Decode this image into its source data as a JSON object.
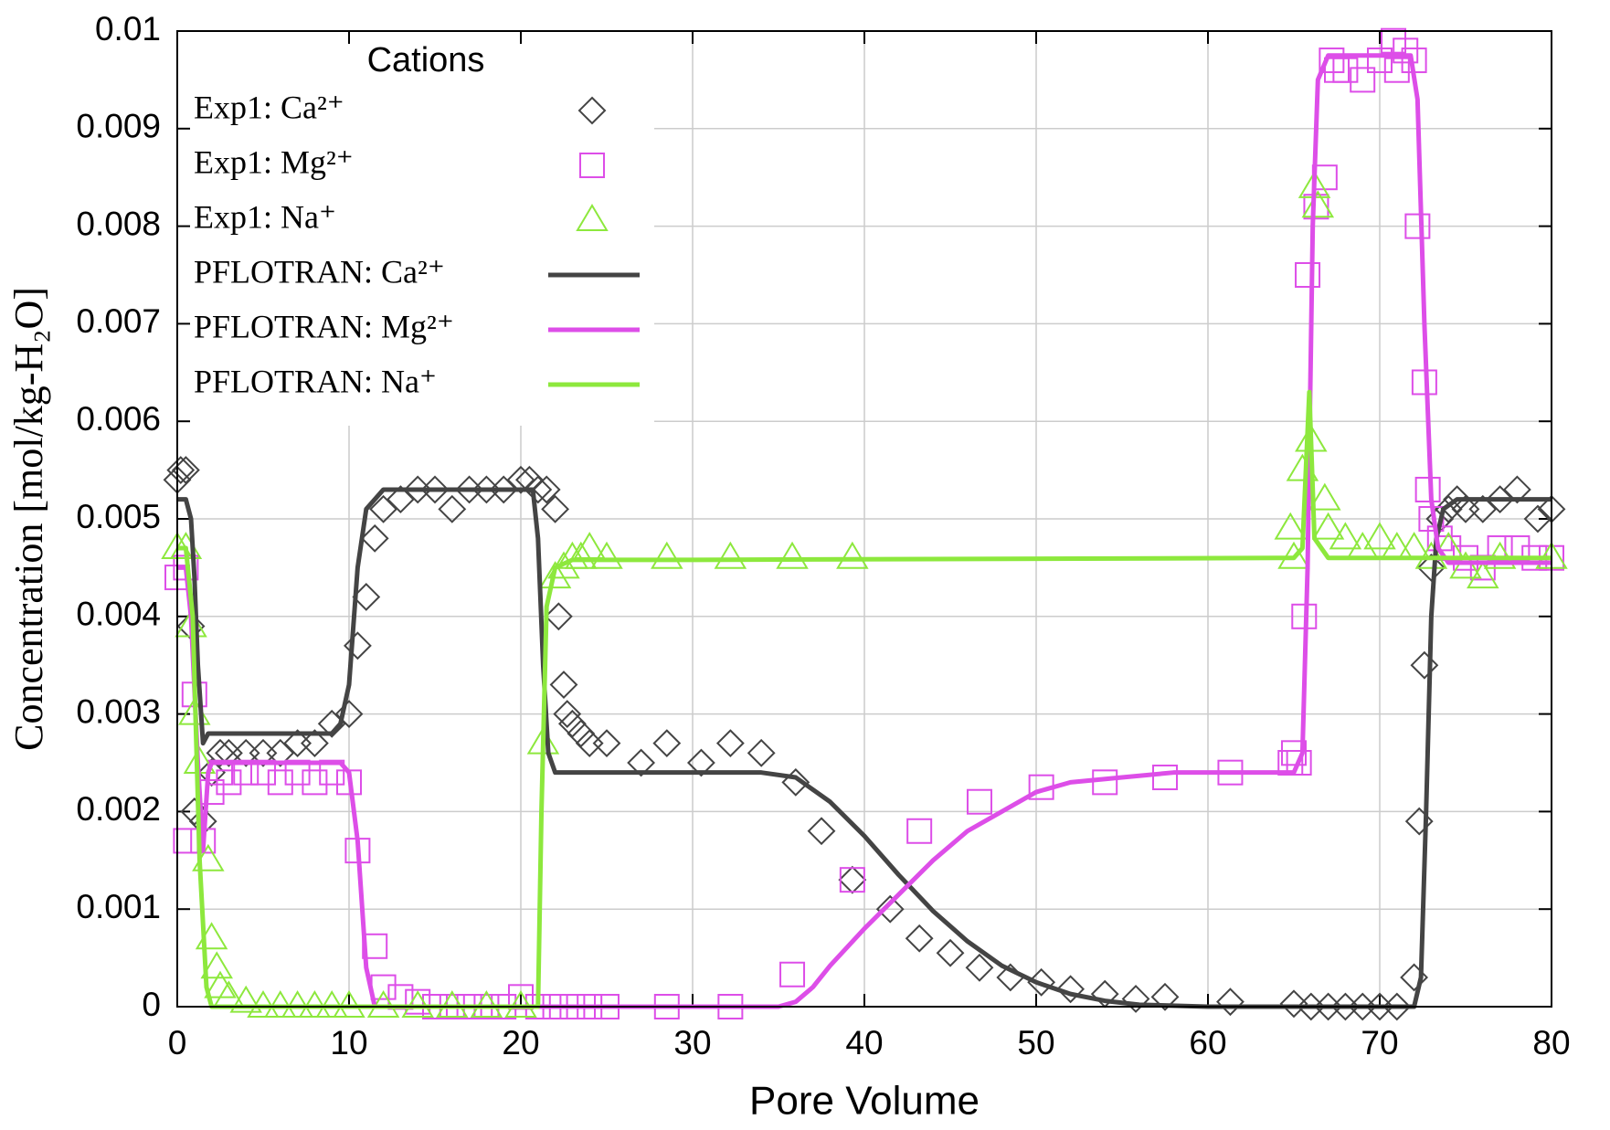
{
  "chart_data": {
    "type": "scatter-line",
    "xlabel": "Pore Volume",
    "ylabel": "Concentration [mol/kg-H₂O]",
    "legend_title": "Cations",
    "legend": "upper left",
    "grid": true,
    "xlim": [
      0,
      80
    ],
    "xticks": [
      0,
      10,
      20,
      30,
      40,
      50,
      60,
      70,
      80
    ],
    "ylim": [
      0,
      0.01
    ],
    "yticks": [
      0,
      0.001,
      0.002,
      0.003,
      0.004,
      0.005,
      0.006,
      0.007,
      0.008,
      0.009,
      0.01
    ],
    "series": [
      {
        "name": "Exp1: Ca²⁺",
        "color": "#444444",
        "marker": "diamond",
        "x": [
          0,
          0.2,
          0.5,
          0.8,
          1,
          1.5,
          2,
          2.5,
          3,
          4,
          5,
          6,
          7,
          8,
          9,
          10,
          10.5,
          11,
          11.5,
          12,
          13,
          14,
          15,
          16,
          17,
          18,
          19,
          20,
          20.5,
          21,
          21.5,
          22,
          22.2,
          22.5,
          22.7,
          23,
          23.5,
          24,
          25,
          27,
          28.5,
          30.5,
          32.2,
          34,
          36,
          37.5,
          39.3,
          41.5,
          43.2,
          45,
          46.7,
          48.5,
          50.3,
          52,
          54,
          55.8,
          57.5,
          61.3,
          65,
          66,
          67,
          68,
          69,
          70,
          71,
          72,
          72.3,
          72.6,
          73,
          73.5,
          74,
          74.5,
          75,
          76,
          77,
          78,
          79.2,
          80
        ],
        "values": [
          0.0054,
          0.0055,
          0.0055,
          0.0039,
          0.002,
          0.0019,
          0.0024,
          0.0026,
          0.0026,
          0.0026,
          0.0026,
          0.0026,
          0.0027,
          0.0027,
          0.0029,
          0.003,
          0.0037,
          0.0042,
          0.0048,
          0.0051,
          0.0052,
          0.0053,
          0.0053,
          0.0051,
          0.0053,
          0.0053,
          0.0053,
          0.0054,
          0.0054,
          0.0053,
          0.0053,
          0.0051,
          0.004,
          0.0033,
          0.003,
          0.0029,
          0.0028,
          0.0027,
          0.0027,
          0.0025,
          0.0027,
          0.0025,
          0.0027,
          0.0026,
          0.0023,
          0.0018,
          0.0013,
          0.001,
          0.0007,
          0.00055,
          0.0004,
          0.0003,
          0.00025,
          0.00018,
          0.00013,
          8e-05,
          0.0001,
          5e-05,
          3e-05,
          0,
          0,
          0,
          0,
          0,
          0,
          0.0003,
          0.0019,
          0.0035,
          0.0045,
          0.005,
          0.0051,
          0.0052,
          0.0051,
          0.0051,
          0.0052,
          0.0053,
          0.005,
          0.0051
        ]
      },
      {
        "name": "Exp1: Mg²⁺",
        "color": "#dd4ee8",
        "marker": "square",
        "x": [
          0,
          0.5,
          1,
          0.5,
          1.5,
          2,
          2.5,
          3,
          4,
          5,
          6,
          7,
          8,
          9,
          10,
          10.5,
          11.5,
          12,
          13,
          14,
          15,
          16,
          17,
          18,
          19,
          20,
          21,
          22,
          23,
          24,
          25,
          28.5,
          32.2,
          35.8,
          39.3,
          43.2,
          46.7,
          50.3,
          54,
          57.5,
          61.3,
          64.8,
          65,
          65.3,
          65.6,
          65.8,
          66.3,
          66.8,
          67.2,
          67.5,
          68,
          69,
          70,
          70.8,
          71,
          71.5,
          72,
          72.2,
          72.6,
          72.8,
          73,
          73.5,
          74,
          75,
          76,
          77,
          78,
          79,
          80
        ],
        "values": [
          0.0044,
          0.0045,
          0.0032,
          0.0017,
          0.0017,
          0.0022,
          0.0024,
          0.0023,
          0.0024,
          0.0024,
          0.0023,
          0.0024,
          0.0023,
          0.0024,
          0.0023,
          0.0016,
          0.00062,
          0.0002,
          0.0001,
          5e-05,
          0,
          0,
          0,
          0,
          0,
          0.0001,
          0,
          0,
          0,
          0,
          0,
          0,
          0,
          0.00033,
          0.0013,
          0.0018,
          0.0021,
          0.00225,
          0.0023,
          0.00235,
          0.0024,
          0.0025,
          0.0026,
          0.0025,
          0.004,
          0.0075,
          0.0082,
          0.0085,
          0.0097,
          0.0096,
          0.0096,
          0.0095,
          0.0097,
          0.0099,
          0.0096,
          0.0098,
          0.0097,
          0.008,
          0.0064,
          0.0053,
          0.005,
          0.0048,
          0.0047,
          0.0046,
          0.0045,
          0.0047,
          0.0047,
          0.0046,
          0.0046
        ]
      },
      {
        "name": "Exp1: Na⁺",
        "color": "#8de83d",
        "marker": "triangle",
        "x": [
          0,
          0.5,
          0.8,
          1,
          1.3,
          1.8,
          2,
          2.3,
          2.5,
          3,
          4,
          5,
          6,
          7,
          8,
          9,
          10,
          12,
          14,
          16,
          18,
          20,
          21.3,
          22,
          22.5,
          23,
          23.5,
          24,
          25,
          28.5,
          32.2,
          35.8,
          39.3,
          64.8,
          65,
          65.5,
          66,
          66.2,
          66.4,
          66.8,
          67,
          68,
          69,
          70,
          71,
          72,
          73,
          74,
          75,
          76,
          77,
          80
        ],
        "values": [
          0.0047,
          0.0047,
          0.0039,
          0.003,
          0.0025,
          0.0015,
          0.0007,
          0.0004,
          0.0002,
          0.0001,
          5e-05,
          0,
          0,
          0,
          0,
          0,
          0,
          0,
          0,
          0,
          0,
          0,
          0.0027,
          0.0044,
          0.0045,
          0.0046,
          0.0046,
          0.0047,
          0.0046,
          0.0046,
          0.0046,
          0.0046,
          0.0046,
          0.0049,
          0.0046,
          0.0055,
          0.0058,
          0.0084,
          0.0082,
          0.0052,
          0.0049,
          0.0048,
          0.0047,
          0.0048,
          0.0047,
          0.0047,
          0.0046,
          0.0047,
          0.0045,
          0.0044,
          0.0046,
          0.0046
        ]
      },
      {
        "name": "PFLOTRAN: Ca²⁺",
        "color": "#444444",
        "marker": "line",
        "x": [
          0,
          0.5,
          0.8,
          1,
          1.2,
          1.5,
          1.8,
          3,
          9,
          9.5,
          10,
          10.5,
          11,
          12,
          20,
          20.7,
          21,
          21.3,
          21.6,
          22,
          34,
          36,
          38,
          40,
          42,
          44,
          46,
          48,
          50,
          52,
          54,
          56,
          60,
          72,
          72.4,
          72.7,
          73,
          73.3,
          73.7,
          74.5,
          80
        ],
        "values": [
          0.0052,
          0.0052,
          0.005,
          0.0044,
          0.0035,
          0.0027,
          0.0028,
          0.0028,
          0.0028,
          0.0029,
          0.0033,
          0.0045,
          0.0051,
          0.0053,
          0.0053,
          0.0053,
          0.0048,
          0.0035,
          0.0026,
          0.0024,
          0.0024,
          0.00235,
          0.0021,
          0.00175,
          0.00135,
          0.00098,
          0.00067,
          0.00042,
          0.00025,
          0.00013,
          6e-05,
          2e-05,
          0,
          0,
          0.0003,
          0.002,
          0.004,
          0.0048,
          0.0051,
          0.0052,
          0.0052
        ]
      },
      {
        "name": "PFLOTRAN: Mg²⁺",
        "color": "#dd4ee8",
        "marker": "line",
        "x": [
          0,
          0.5,
          0.8,
          1.2,
          1.5,
          1.8,
          2,
          9.5,
          10,
          10.5,
          11,
          11.5,
          35,
          36,
          37,
          38,
          40,
          42,
          44,
          46,
          48,
          50,
          52,
          55,
          58,
          65,
          65.5,
          65.8,
          66.1,
          66.4,
          67,
          71.8,
          72.2,
          72.6,
          73,
          73.4,
          74,
          80
        ],
        "values": [
          0.0045,
          0.0045,
          0.004,
          0.0025,
          0.0016,
          0.0024,
          0.0025,
          0.0025,
          0.0024,
          0.0017,
          0.0004,
          0,
          0,
          5e-05,
          0.0002,
          0.00042,
          0.0008,
          0.00115,
          0.0015,
          0.0018,
          0.002,
          0.0022,
          0.0023,
          0.00235,
          0.0024,
          0.0024,
          0.0026,
          0.0045,
          0.008,
          0.0095,
          0.00975,
          0.00975,
          0.0093,
          0.007,
          0.0052,
          0.0047,
          0.00455,
          0.00455
        ]
      },
      {
        "name": "PFLOTRAN: Na⁺",
        "color": "#8de83d",
        "marker": "line",
        "x": [
          0,
          0.5,
          0.9,
          1.3,
          1.7,
          2,
          21,
          21.2,
          21.5,
          22,
          23,
          30,
          65,
          65.5,
          65.9,
          66.2,
          67,
          80
        ],
        "values": [
          0.0047,
          0.0047,
          0.004,
          0.0015,
          0.0002,
          0,
          0,
          0.002,
          0.0041,
          0.0045,
          0.00458,
          0.00458,
          0.0046,
          0.0047,
          0.0063,
          0.0048,
          0.0046,
          0.0046
        ]
      }
    ]
  }
}
